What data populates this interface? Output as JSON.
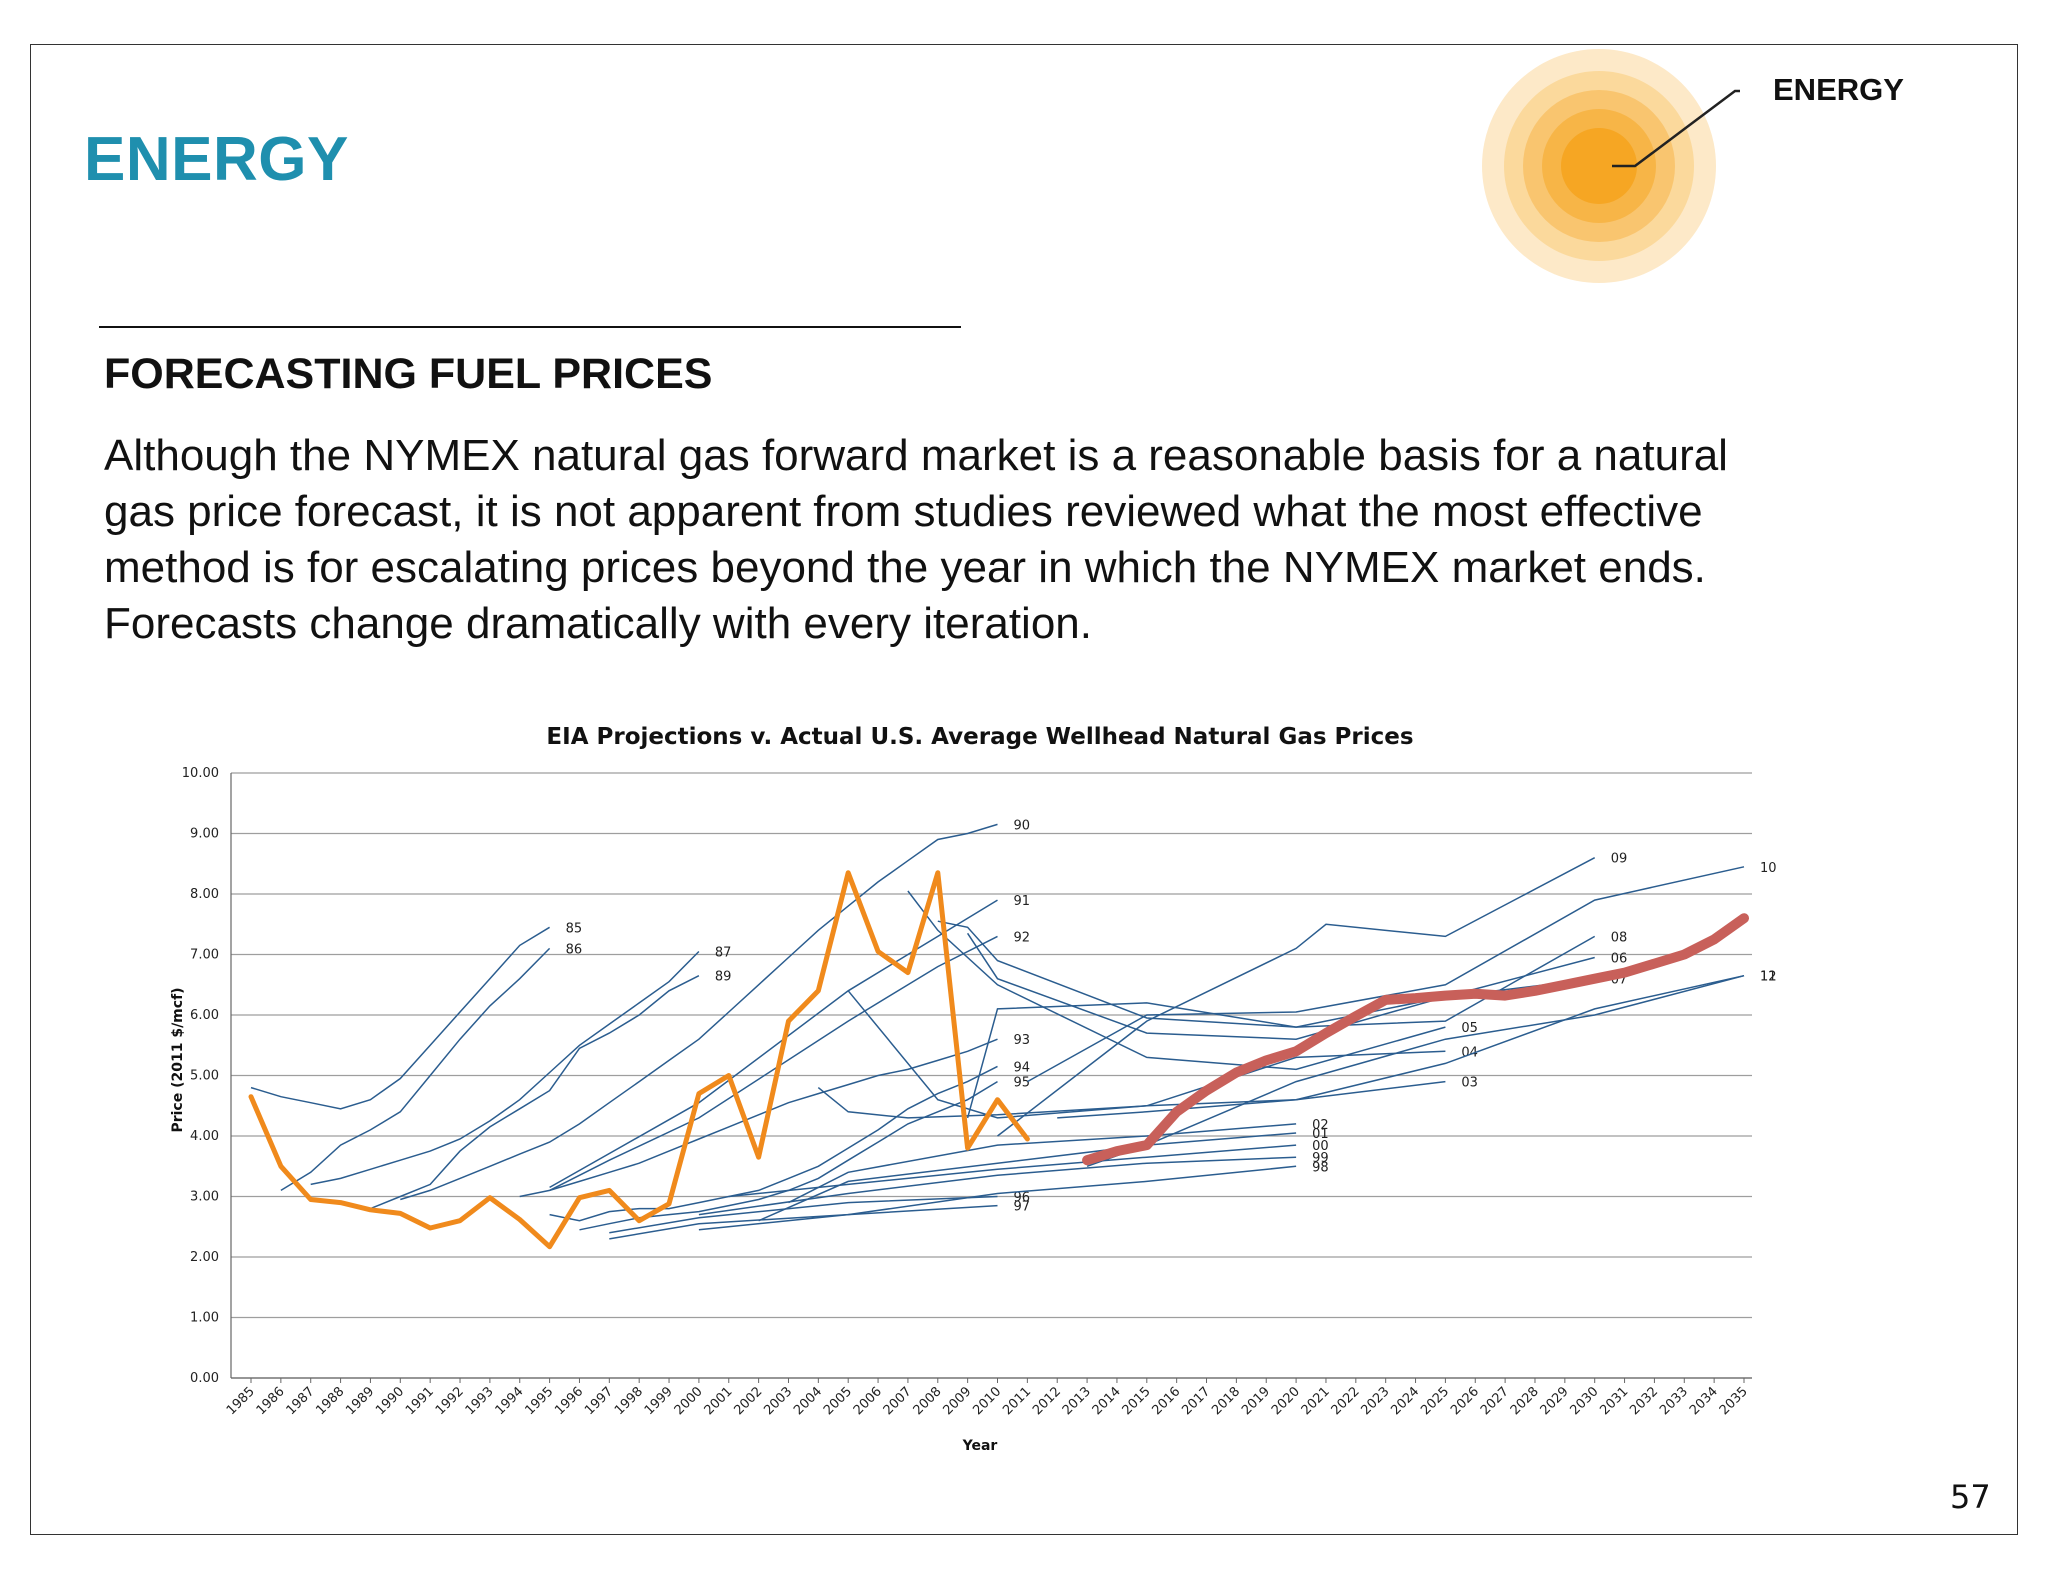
{
  "section": {
    "label": "ENERGY"
  },
  "badge": {
    "label": "ENERGY"
  },
  "heading": "FORECASTING FUEL PRICES",
  "body_lines": [
    "Although the NYMEX natural gas forward market is a reasonable basis for a natural",
    "gas price forecast, it is not apparent from studies reviewed what the most effective",
    "method is for escalating prices beyond the year in which the NYMEX market ends.",
    "Forecasts change dramatically with every iteration."
  ],
  "page_number": "57",
  "colors": {
    "section_label": "#1f8fae",
    "projection_lines": "#2b5d8f",
    "actual_line": "#f08a1c",
    "forecast_2012_line": "#c8605a",
    "sun_core": "#f6a623",
    "grid": "#9e9e9e"
  },
  "chart_data": {
    "type": "line",
    "title": "EIA Projections v. Actual U.S. Average Wellhead Natural Gas Prices",
    "xlabel": "Year",
    "ylabel": "Price (2011 $/mcf)",
    "ylim": [
      0,
      10
    ],
    "yticks": [
      "0.00",
      "1.00",
      "2.00",
      "3.00",
      "4.00",
      "5.00",
      "6.00",
      "7.00",
      "8.00",
      "9.00",
      "10.00"
    ],
    "categories": [
      "1985",
      "1986",
      "1987",
      "1988",
      "1989",
      "1990",
      "1991",
      "1992",
      "1993",
      "1994",
      "1995",
      "1996",
      "1997",
      "1998",
      "1999",
      "2000",
      "2001",
      "2002",
      "2003",
      "2004",
      "2005",
      "2006",
      "2007",
      "2008",
      "2009",
      "2010",
      "2011",
      "2012",
      "2013",
      "2014",
      "2015",
      "2016",
      "2017",
      "2018",
      "2019",
      "2020",
      "2021",
      "2022",
      "2023",
      "2024",
      "2025",
      "2026",
      "2027",
      "2028",
      "2029",
      "2030",
      "2031",
      "2032",
      "2033",
      "2034",
      "2035"
    ],
    "grid": true,
    "legend": "none",
    "projections": [
      {
        "label": "85",
        "x": [
          1985,
          1986,
          1987,
          1988,
          1989,
          1990,
          1991,
          1992,
          1993,
          1994,
          1995
        ],
        "y": [
          4.8,
          4.65,
          4.55,
          4.45,
          4.6,
          4.95,
          5.5,
          6.05,
          6.6,
          7.15,
          7.45
        ]
      },
      {
        "label": "86",
        "x": [
          1986,
          1987,
          1988,
          1989,
          1990,
          1991,
          1992,
          1993,
          1994,
          1995
        ],
        "y": [
          3.1,
          3.4,
          3.85,
          4.1,
          4.4,
          5.0,
          5.6,
          6.15,
          6.6,
          7.1
        ]
      },
      {
        "label": "87",
        "x": [
          1987,
          1988,
          1989,
          1990,
          1991,
          1992,
          1993,
          1994,
          1995,
          1996,
          1997,
          1998,
          1999,
          2000
        ],
        "y": [
          3.2,
          3.3,
          3.45,
          3.6,
          3.75,
          3.95,
          4.25,
          4.6,
          5.05,
          5.5,
          5.85,
          6.2,
          6.55,
          7.05
        ]
      },
      {
        "label": "89",
        "x": [
          1989,
          1990,
          1991,
          1992,
          1993,
          1994,
          1995,
          1996,
          1997,
          1998,
          1999,
          2000
        ],
        "y": [
          2.8,
          3.0,
          3.2,
          3.75,
          4.15,
          4.45,
          4.75,
          5.45,
          5.7,
          6.0,
          6.4,
          6.65
        ]
      },
      {
        "label": "90",
        "x": [
          1990,
          1991,
          1992,
          1993,
          1994,
          1995,
          1996,
          1997,
          1998,
          1999,
          2000,
          2001,
          2002,
          2003,
          2004,
          2005,
          2006,
          2007,
          2008,
          2009,
          2010
        ],
        "y": [
          2.95,
          3.1,
          3.3,
          3.5,
          3.7,
          3.9,
          4.2,
          4.55,
          4.9,
          5.25,
          5.6,
          6.05,
          6.5,
          6.95,
          7.4,
          7.8,
          8.2,
          8.55,
          8.9,
          9.0,
          9.15
        ]
      },
      {
        "label": "91",
        "x": [
          1995,
          2000,
          2005,
          2010
        ],
        "y": [
          3.15,
          4.55,
          6.4,
          7.9
        ]
      },
      {
        "label": "92",
        "x": [
          1995,
          1997,
          2000,
          2005,
          2008,
          2010
        ],
        "y": [
          3.1,
          3.6,
          4.3,
          5.9,
          6.8,
          7.3
        ]
      },
      {
        "label": "93",
        "x": [
          1994,
          1995,
          1996,
          1997,
          1998,
          1999,
          2000,
          2001,
          2002,
          2003,
          2004,
          2005,
          2006,
          2007,
          2008,
          2009,
          2010
        ],
        "y": [
          3.0,
          3.1,
          3.25,
          3.4,
          3.55,
          3.75,
          3.95,
          4.15,
          4.35,
          4.55,
          4.7,
          4.85,
          5.0,
          5.1,
          5.25,
          5.4,
          5.6
        ]
      },
      {
        "label": "94",
        "x": [
          1995,
          1996,
          1997,
          1998,
          1999,
          2000,
          2001,
          2002,
          2003,
          2004,
          2005,
          2006,
          2007,
          2008,
          2009,
          2010
        ],
        "y": [
          2.7,
          2.6,
          2.75,
          2.8,
          2.8,
          2.9,
          3.0,
          3.1,
          3.3,
          3.5,
          3.8,
          4.1,
          4.45,
          4.7,
          4.9,
          5.15
        ]
      },
      {
        "label": "95",
        "x": [
          1996,
          1997,
          1998,
          1999,
          2000,
          2001,
          2002,
          2003,
          2004,
          2005,
          2006,
          2007,
          2008,
          2009,
          2010
        ],
        "y": [
          2.45,
          2.55,
          2.65,
          2.7,
          2.75,
          2.85,
          2.95,
          3.1,
          3.3,
          3.6,
          3.9,
          4.2,
          4.4,
          4.6,
          4.9
        ]
      },
      {
        "label": "96",
        "x": [
          1997,
          2000,
          2005,
          2010
        ],
        "y": [
          2.4,
          2.65,
          2.9,
          3.0
        ]
      },
      {
        "label": "97",
        "x": [
          1997,
          2000,
          2005,
          2010
        ],
        "y": [
          2.3,
          2.55,
          2.7,
          2.85
        ]
      },
      {
        "label": "98",
        "x": [
          2000,
          2005,
          2010,
          2015,
          2020
        ],
        "y": [
          2.45,
          2.7,
          3.05,
          3.25,
          3.5
        ]
      },
      {
        "label": "99",
        "x": [
          2000,
          2005,
          2010,
          2015,
          2020
        ],
        "y": [
          2.7,
          3.05,
          3.35,
          3.55,
          3.65
        ]
      },
      {
        "label": "00",
        "x": [
          2001,
          2005,
          2010,
          2015,
          2020
        ],
        "y": [
          3.0,
          3.2,
          3.45,
          3.65,
          3.85
        ]
      },
      {
        "label": "01",
        "x": [
          2002,
          2005,
          2010,
          2015,
          2020
        ],
        "y": [
          2.6,
          3.25,
          3.55,
          3.85,
          4.05
        ]
      },
      {
        "label": "02",
        "x": [
          2003,
          2005,
          2010,
          2015,
          2020
        ],
        "y": [
          2.9,
          3.4,
          3.85,
          4.0,
          4.2
        ]
      },
      {
        "label": "03",
        "x": [
          2004,
          2005,
          2007,
          2010,
          2015,
          2020,
          2025
        ],
        "y": [
          4.8,
          4.4,
          4.3,
          4.35,
          4.5,
          4.6,
          4.9
        ]
      },
      {
        "label": "04",
        "x": [
          2005,
          2008,
          2010,
          2015,
          2020,
          2025
        ],
        "y": [
          6.4,
          4.6,
          4.3,
          4.5,
          5.3,
          5.4
        ]
      },
      {
        "label": "05",
        "x": [
          2007,
          2008,
          2010,
          2015,
          2020,
          2025
        ],
        "y": [
          8.05,
          7.4,
          6.5,
          5.3,
          5.1,
          5.8
        ]
      },
      {
        "label": "06",
        "x": [
          2008,
          2009,
          2010,
          2015,
          2020,
          2025,
          2030
        ],
        "y": [
          7.55,
          7.45,
          6.9,
          5.95,
          5.8,
          6.3,
          6.95
        ]
      },
      {
        "label": "07",
        "x": [
          2009,
          2010,
          2015,
          2020,
          2025,
          2030
        ],
        "y": [
          7.35,
          6.6,
          5.7,
          5.6,
          6.3,
          6.6
        ]
      },
      {
        "label": "08",
        "x": [
          2009,
          2010,
          2015,
          2020,
          2025,
          2030
        ],
        "y": [
          4.3,
          6.1,
          6.2,
          5.8,
          5.9,
          7.3
        ]
      },
      {
        "label": "09",
        "x": [
          2010,
          2015,
          2020,
          2021,
          2025,
          2030
        ],
        "y": [
          4.0,
          5.9,
          7.1,
          7.5,
          7.3,
          8.6
        ]
      },
      {
        "label": "10",
        "x": [
          2011,
          2015,
          2020,
          2025,
          2030,
          2035
        ],
        "y": [
          4.9,
          6.0,
          6.05,
          6.5,
          7.9,
          8.45
        ]
      },
      {
        "label": "11",
        "x": [
          2012,
          2015,
          2020,
          2025,
          2030,
          2035
        ],
        "y": [
          4.3,
          4.4,
          4.6,
          5.2,
          6.1,
          6.65
        ]
      },
      {
        "label": "12",
        "x": [
          2013,
          2015,
          2020,
          2025,
          2030,
          2035
        ],
        "y": [
          3.5,
          3.85,
          4.9,
          5.6,
          6.0,
          6.65
        ]
      }
    ],
    "actual": {
      "x": [
        1985,
        1986,
        1987,
        1988,
        1989,
        1990,
        1991,
        1992,
        1993,
        1994,
        1995,
        1996,
        1997,
        1998,
        1999,
        2000,
        2001,
        2002,
        2003,
        2004,
        2005,
        2006,
        2007,
        2008,
        2009,
        2010,
        2011
      ],
      "y": [
        4.65,
        3.5,
        2.95,
        2.9,
        2.78,
        2.72,
        2.48,
        2.6,
        2.98,
        2.62,
        2.17,
        2.98,
        3.1,
        2.6,
        2.88,
        4.7,
        5.0,
        3.65,
        5.9,
        6.4,
        8.35,
        7.05,
        6.7,
        8.35,
        3.8,
        4.6,
        3.95
      ]
    },
    "forecast_2012": {
      "x": [
        2013,
        2014,
        2015,
        2016,
        2017,
        2018,
        2019,
        2020,
        2021,
        2022,
        2023,
        2024,
        2025,
        2026,
        2027,
        2028,
        2029,
        2030,
        2031,
        2032,
        2033,
        2034,
        2035
      ],
      "y": [
        3.6,
        3.75,
        3.85,
        4.4,
        4.75,
        5.05,
        5.25,
        5.4,
        5.7,
        5.98,
        6.25,
        6.28,
        6.32,
        6.35,
        6.32,
        6.4,
        6.5,
        6.6,
        6.7,
        6.85,
        7.0,
        7.25,
        7.6
      ]
    }
  }
}
